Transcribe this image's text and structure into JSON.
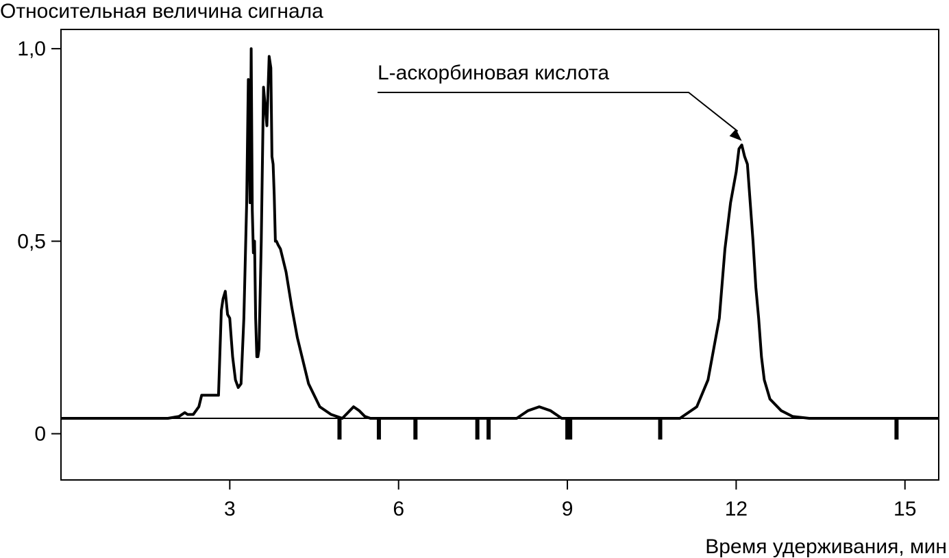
{
  "chart_data": {
    "type": "line",
    "title": "",
    "ylabel": "Относительная величина сигнала",
    "xlabel": "Время удерживания, мин",
    "xlim": [
      0,
      15.6
    ],
    "ylim": [
      -0.12,
      1.05
    ],
    "xticks": [
      3,
      6,
      9,
      12,
      15
    ],
    "yticks": [
      0,
      0.5,
      1.0
    ],
    "xtick_labels": [
      "3",
      "6",
      "9",
      "12",
      "15"
    ],
    "ytick_labels": [
      "0",
      "0,5",
      "1,0"
    ],
    "grid": false,
    "baseline": 0.04,
    "series": [
      {
        "x": [
          0,
          1.9,
          2.1,
          2.2,
          2.25,
          2.35,
          2.45,
          2.5,
          2.55,
          2.6,
          2.8,
          2.85,
          2.88,
          2.92,
          2.96,
          3.0,
          3.05,
          3.1,
          3.15,
          3.2,
          3.25,
          3.3,
          3.33,
          3.36,
          3.38,
          3.4,
          3.42,
          3.44,
          3.46,
          3.48,
          3.5,
          3.52,
          3.56,
          3.6,
          3.66,
          3.7,
          3.73,
          3.75,
          3.77,
          3.79,
          3.81,
          3.83,
          3.86,
          3.9,
          3.95,
          4.0,
          4.1,
          4.2,
          4.4,
          4.6,
          4.8,
          5.0,
          5.1,
          5.2,
          5.3,
          5.4,
          5.5,
          5.6,
          8.1,
          8.3,
          8.5,
          8.7,
          8.9,
          9.1,
          11.0,
          11.3,
          11.5,
          11.7,
          11.8,
          11.9,
          12.0,
          12.05,
          12.1,
          12.15,
          12.2,
          12.25,
          12.3,
          12.35,
          12.4,
          12.45,
          12.5,
          12.6,
          12.8,
          13.0,
          13.3,
          13.6,
          14.0,
          15.6
        ],
        "values": [
          0.04,
          0.04,
          0.045,
          0.055,
          0.05,
          0.05,
          0.07,
          0.1,
          0.1,
          0.1,
          0.1,
          0.32,
          0.35,
          0.37,
          0.31,
          0.3,
          0.2,
          0.14,
          0.12,
          0.13,
          0.3,
          0.6,
          0.92,
          0.6,
          1.0,
          0.58,
          0.47,
          0.5,
          0.3,
          0.2,
          0.2,
          0.22,
          0.5,
          0.9,
          0.8,
          0.98,
          0.95,
          0.72,
          0.7,
          0.62,
          0.5,
          0.5,
          0.49,
          0.48,
          0.45,
          0.42,
          0.33,
          0.25,
          0.13,
          0.07,
          0.05,
          0.04,
          0.055,
          0.07,
          0.06,
          0.045,
          0.04,
          0.04,
          0.04,
          0.06,
          0.07,
          0.06,
          0.04,
          0.04,
          0.04,
          0.07,
          0.14,
          0.3,
          0.48,
          0.6,
          0.68,
          0.74,
          0.75,
          0.72,
          0.7,
          0.6,
          0.5,
          0.38,
          0.3,
          0.2,
          0.14,
          0.09,
          0.06,
          0.045,
          0.04,
          0.04,
          0.04,
          0.04
        ]
      }
    ],
    "event_markers": [
      4.95,
      5.65,
      6.3,
      7.4,
      7.6,
      9.0,
      9.05,
      10.65,
      14.85
    ],
    "annotation": {
      "text": "L-аскорбиновая кислота",
      "x": 12.1,
      "y": 0.75
    }
  }
}
